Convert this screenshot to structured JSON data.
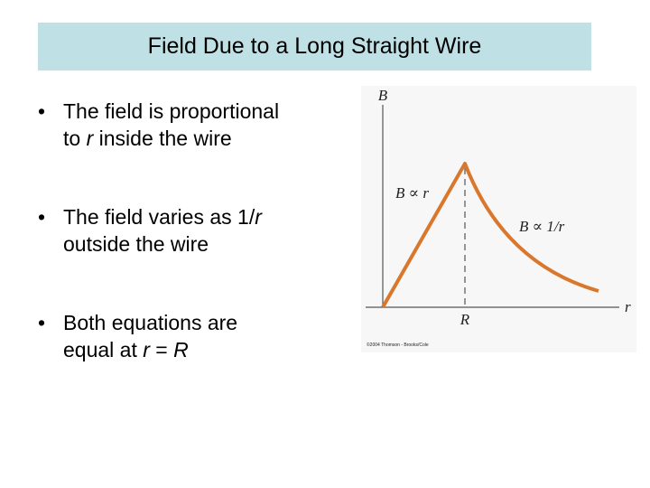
{
  "header": {
    "title": "Field Due to a Long Straight Wire"
  },
  "bullets": [
    {
      "lines": [
        [
          "The field is proportional"
        ],
        [
          "to ",
          "r",
          " inside the wire"
        ]
      ]
    },
    {
      "lines": [
        [
          "The field varies as 1/",
          "r"
        ],
        [
          "outside the wire"
        ]
      ]
    },
    {
      "lines": [
        [
          "Both equations are"
        ],
        [
          "equal at ",
          "r",
          " = ",
          "R"
        ]
      ]
    }
  ],
  "figure": {
    "y_axis_label": "B",
    "x_axis_label": "r",
    "boundary_label": "R",
    "inside_label": "B ∝ r",
    "outside_label": "B ∝ 1/r",
    "credit": "©2004 Thomson - Brooks/Cole"
  }
}
